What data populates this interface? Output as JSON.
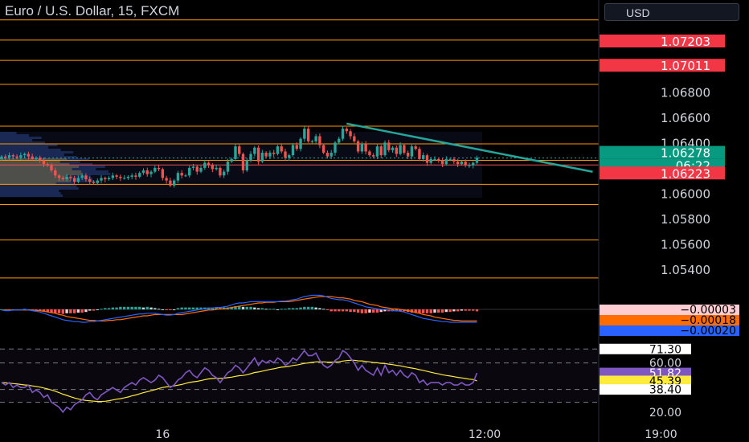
{
  "header": {
    "symbol": "Euro / U.S. Dollar, 15, FXCM",
    "currency": "USD"
  },
  "colors": {
    "bull": "#26a69a",
    "bear": "#ef5350",
    "hline": "#ff9800",
    "trend": "#26a69a",
    "macd": "#2962ff",
    "signal": "#ff6d00",
    "rsi": "#7e57c2",
    "rsi_ma": "#ffeb3b",
    "red_label": "#f23645",
    "green_label": "#089981"
  },
  "chart_data": [
    {
      "type": "candlestick",
      "title": "Euro / U.S. Dollar, 15, FXCM",
      "ylim": [
        1.0524,
        1.074
      ],
      "y_ticks": [
        "1.06800",
        "1.06600",
        "1.06400",
        "1.06000",
        "1.05800",
        "1.05600",
        "1.05400"
      ],
      "horizontal_levels": [
        1.0737,
        1.0721,
        1.0705,
        1.0686,
        1.0653,
        1.0639,
        1.0626,
        1.0607,
        1.0591,
        1.0563,
        1.0533
      ],
      "price_labels": [
        {
          "text": "1.07203",
          "value": 1.07203,
          "kind": "red"
        },
        {
          "text": "1.07011",
          "value": 1.07011,
          "kind": "red"
        },
        {
          "text": "1.06278",
          "value": 1.06278,
          "kind": "green"
        },
        {
          "text": "06:22",
          "value": 1.06278,
          "kind": "green-sub"
        },
        {
          "text": "1.06223",
          "value": 1.06223,
          "kind": "red"
        }
      ],
      "trendline": {
        "from": [
          90,
          1.0655
        ],
        "to": [
          150,
          1.0622
        ]
      },
      "close": [
        1.0629,
        1.0628,
        1.063,
        1.0629,
        1.0628,
        1.063,
        1.0631,
        1.0629,
        1.0627,
        1.0628,
        1.0626,
        1.0623,
        1.0622,
        1.0618,
        1.0614,
        1.0612,
        1.0611,
        1.0613,
        1.0612,
        1.0609,
        1.0612,
        1.0614,
        1.0611,
        1.0609,
        1.0608,
        1.061,
        1.0612,
        1.0611,
        1.0612,
        1.0614,
        1.0613,
        1.0612,
        1.0612,
        1.0613,
        1.0614,
        1.0613,
        1.0616,
        1.0618,
        1.0615,
        1.0617,
        1.062,
        1.0619,
        1.0612,
        1.061,
        1.0606,
        1.061,
        1.0616,
        1.0614,
        1.0614,
        1.062,
        1.0621,
        1.0617,
        1.062,
        1.0624,
        1.0622,
        1.0619,
        1.062,
        1.0614,
        1.0617,
        1.0625,
        1.0627,
        1.0637,
        1.0631,
        1.0618,
        1.0626,
        1.0631,
        1.0636,
        1.0625,
        1.0632,
        1.0629,
        1.0632,
        1.0631,
        1.0637,
        1.0633,
        1.0628,
        1.063,
        1.0638,
        1.0635,
        1.0643,
        1.0651,
        1.0641,
        1.0641,
        1.0645,
        1.0638,
        1.0632,
        1.0629,
        1.0632,
        1.064,
        1.0643,
        1.0651,
        1.0649,
        1.0645,
        1.0641,
        1.0633,
        1.0639,
        1.0633,
        1.063,
        1.0629,
        1.0637,
        1.063,
        1.064,
        1.0634,
        1.0636,
        1.0631,
        1.0638,
        1.0632,
        1.0629,
        1.0637,
        1.0635,
        1.0627,
        1.063,
        1.0624,
        1.0627,
        1.0627,
        1.0626,
        1.0623,
        1.0627,
        1.0627,
        1.0625,
        1.0623,
        1.0625,
        1.0622,
        1.0622,
        1.0624,
        1.0628
      ]
    },
    {
      "type": "macd",
      "ylim": [
        -0.0004,
        0.0003
      ],
      "labels": [
        {
          "text": "−0.00003",
          "value": -3e-05,
          "kind": "pink"
        },
        {
          "text": "−0.00018",
          "value": -0.00018,
          "kind": "orange"
        },
        {
          "text": "−0.00020",
          "value": -0.0002,
          "kind": "blue"
        }
      ],
      "macd": [
        -1e-05,
        -2e-05,
        -2e-05,
        -1e-05,
        -1e-05,
        -1e-05,
        -0.0,
        -1e-05,
        -2e-05,
        -3e-05,
        -4e-05,
        -6e-05,
        -8e-05,
        -0.0001,
        -0.00012,
        -0.00014,
        -0.00016,
        -0.00017,
        -0.00018,
        -0.00019,
        -0.00019,
        -0.0002,
        -0.0002,
        -0.00019,
        -0.00019,
        -0.00018,
        -0.00017,
        -0.00016,
        -0.00015,
        -0.00014,
        -0.00013,
        -0.00012,
        -0.00011,
        -0.0001,
        -9e-05,
        -8e-05,
        -7e-05,
        -7e-05,
        -6e-05,
        -6e-05,
        -6e-05,
        -7e-05,
        -8e-05,
        -9e-05,
        -9e-05,
        -8e-05,
        -6e-05,
        -5e-05,
        -4e-05,
        -3e-05,
        -2e-05,
        -1e-05,
        0.0,
        1e-05,
        2e-05,
        2e-05,
        3e-05,
        3e-05,
        4e-05,
        5e-05,
        7e-05,
        9e-05,
        0.0001,
        0.0001,
        0.00011,
        0.00012,
        0.00012,
        0.00012,
        0.00012,
        0.00012,
        0.00012,
        0.00012,
        0.00012,
        0.00013,
        0.00013,
        0.00014,
        0.00015,
        0.00016,
        0.00018,
        0.0002,
        0.00021,
        0.00022,
        0.00022,
        0.00022,
        0.00021,
        0.00019,
        0.00017,
        0.00016,
        0.00015,
        0.00015,
        0.00014,
        0.00012,
        0.0001,
        8e-05,
        6e-05,
        4e-05,
        3e-05,
        2e-05,
        1e-05,
        0.0,
        -0.0,
        -1e-05,
        -2e-05,
        -2e-05,
        -3e-05,
        -4e-05,
        -6e-05,
        -8e-05,
        -0.0001,
        -0.00012,
        -0.00014,
        -0.00015,
        -0.00016,
        -0.00017,
        -0.00018,
        -0.00019,
        -0.00019,
        -0.0002,
        -0.0002,
        -0.0002,
        -0.0002,
        -0.0002,
        -0.0002,
        -0.0002,
        -0.0002
      ],
      "signal": [
        -1e-05,
        -1e-05,
        -1e-05,
        -1e-05,
        -1e-05,
        -1e-05,
        -1e-05,
        -1e-05,
        -1e-05,
        -2e-05,
        -2e-05,
        -3e-05,
        -4e-05,
        -5e-05,
        -6e-05,
        -8e-05,
        -9e-05,
        -0.00011,
        -0.00012,
        -0.00013,
        -0.00014,
        -0.00015,
        -0.00016,
        -0.00017,
        -0.00017,
        -0.00018,
        -0.00018,
        -0.00018,
        -0.00017,
        -0.00017,
        -0.00016,
        -0.00016,
        -0.00015,
        -0.00014,
        -0.00013,
        -0.00012,
        -0.00011,
        -0.0001,
        -0.0001,
        -9e-05,
        -8e-05,
        -8e-05,
        -8e-05,
        -8e-05,
        -8e-05,
        -8e-05,
        -8e-05,
        -8e-05,
        -7e-05,
        -6e-05,
        -5e-05,
        -4e-05,
        -3e-05,
        -2e-05,
        -1e-05,
        -1e-05,
        0.0,
        1e-05,
        1e-05,
        2e-05,
        3e-05,
        4e-05,
        5e-05,
        6e-05,
        7e-05,
        8e-05,
        9e-05,
        0.0001,
        0.0001,
        0.00011,
        0.00011,
        0.00011,
        0.00012,
        0.00012,
        0.00012,
        0.00012,
        0.00013,
        0.00014,
        0.00015,
        0.00016,
        0.00017,
        0.00018,
        0.00019,
        0.0002,
        0.0002,
        0.0002,
        0.0002,
        0.00019,
        0.00018,
        0.00018,
        0.00017,
        0.00016,
        0.00014,
        0.00013,
        0.00012,
        0.0001,
        8e-05,
        7e-05,
        6e-05,
        4e-05,
        3e-05,
        2e-05,
        1e-05,
        1e-05,
        0.0,
        -1e-05,
        -2e-05,
        -3e-05,
        -5e-05,
        -6e-05,
        -8e-05,
        -9e-05,
        -0.0001,
        -0.00012,
        -0.00013,
        -0.00014,
        -0.00015,
        -0.00016,
        -0.00017,
        -0.00017,
        -0.00018,
        -0.00018,
        -0.00018,
        -0.00018,
        -0.00018
      ],
      "hist": [
        0.0,
        -0.0,
        -1e-05,
        0.0,
        0.0,
        0.0,
        1e-05,
        0.0,
        -1e-05,
        -1e-05,
        -2e-05,
        -3e-05,
        -4e-05,
        -5e-05,
        -6e-05,
        -6e-05,
        -7e-05,
        -6e-05,
        -6e-05,
        -6e-05,
        -5e-05,
        -5e-05,
        -4e-05,
        -2e-05,
        -2e-05,
        0.0,
        1e-05,
        2e-05,
        2e-05,
        3e-05,
        3e-05,
        4e-05,
        4e-05,
        4e-05,
        4e-05,
        4e-05,
        4e-05,
        3e-05,
        4e-05,
        3e-05,
        2e-05,
        1e-05,
        -0.0,
        -1e-05,
        -1e-05,
        0.0,
        2e-05,
        3e-05,
        3e-05,
        3e-05,
        3e-05,
        3e-05,
        3e-05,
        3e-05,
        3e-05,
        3e-05,
        3e-05,
        2e-05,
        3e-05,
        3e-05,
        4e-05,
        5e-05,
        5e-05,
        4e-05,
        4e-05,
        4e-05,
        3e-05,
        2e-05,
        2e-05,
        1e-05,
        1e-05,
        1e-05,
        0.0,
        1e-05,
        1e-05,
        2e-05,
        2e-05,
        2e-05,
        3e-05,
        4e-05,
        4e-05,
        4e-05,
        3e-05,
        2e-05,
        1e-05,
        -1e-05,
        -3e-05,
        -3e-05,
        -3e-05,
        -3e-05,
        -3e-05,
        -4e-05,
        -4e-05,
        -5e-05,
        -6e-05,
        -6e-05,
        -5e-05,
        -5e-05,
        -5e-05,
        -4e-05,
        -3e-05,
        -3e-05,
        -3e-05,
        -3e-05,
        -3e-05,
        -3e-05,
        -4e-05,
        -5e-05,
        -5e-05,
        -6e-05,
        -6e-05,
        -6e-05,
        -6e-05,
        -5e-05,
        -5e-05,
        -5e-05,
        -4e-05,
        -4e-05,
        -3e-05,
        -3e-05,
        -2e-05,
        -2e-05,
        -2e-05,
        -2e-05,
        -3e-05
      ]
    },
    {
      "type": "rsi",
      "ylim": [
        14,
        78
      ],
      "y_ticks": [
        "71.30",
        "60.00",
        "51.82",
        "45.39",
        "38.40",
        "20.00"
      ],
      "labels": [
        {
          "text": "71.30",
          "value": 71.3,
          "kind": "white"
        },
        {
          "text": "51.82",
          "value": 51.82,
          "kind": "purple"
        },
        {
          "text": "45.39",
          "value": 45.39,
          "kind": "yellow"
        },
        {
          "text": "38.40",
          "value": 38.4,
          "kind": "white"
        }
      ],
      "levels": [
        71.3,
        60,
        38.4,
        28
      ],
      "x_ticks": [
        {
          "index": 42,
          "text": "16"
        },
        {
          "index": 126,
          "text": "12:00"
        },
        {
          "index": 172,
          "text": "19:00"
        }
      ],
      "rsi": [
        44.0,
        42.0,
        44.0,
        40.0,
        42.0,
        40.0,
        40.0,
        42.0,
        36.0,
        38.0,
        36.0,
        32.0,
        34.0,
        28.0,
        26.0,
        24.0,
        20.0,
        24.0,
        22.0,
        26.0,
        28.0,
        30.0,
        34.0,
        36.0,
        32.0,
        30.0,
        34.0,
        36.0,
        38.0,
        40.0,
        38.0,
        36.0,
        40.0,
        42.0,
        44.0,
        42.0,
        46.0,
        48.0,
        46.0,
        44.0,
        46.0,
        50.0,
        48.0,
        44.0,
        40.0,
        42.0,
        46.0,
        48.0,
        52.0,
        54.0,
        50.0,
        48.0,
        52.0,
        56.0,
        54.0,
        50.0,
        48.0,
        44.0,
        48.0,
        52.0,
        54.0,
        58.0,
        56.0,
        52.0,
        56.0,
        60.0,
        64.0,
        58.0,
        62.0,
        60.0,
        62.0,
        60.0,
        64.0,
        62.0,
        58.0,
        60.0,
        64.0,
        62.0,
        66.0,
        70.0,
        66.0,
        66.0,
        68.0,
        62.0,
        58.0,
        56.0,
        58.0,
        62.0,
        64.0,
        70.0,
        68.0,
        64.0,
        60.0,
        54.0,
        58.0,
        54.0,
        52.0,
        50.0,
        56.0,
        50.0,
        58.0,
        52.0,
        54.0,
        50.0,
        54.0,
        50.0,
        48.0,
        52.0,
        50.0,
        44.0,
        46.0,
        42.0,
        44.0,
        44.0,
        44.0,
        42.0,
        44.0,
        44.0,
        42.0,
        42.0,
        44.0,
        42.0,
        42.0,
        44.0,
        51.82
      ],
      "rsi_ma": [
        44.0,
        43.8,
        43.6,
        43.2,
        42.9,
        42.5,
        42.1,
        41.8,
        41.3,
        40.9,
        40.3,
        39.6,
        38.9,
        38.0,
        37.0,
        35.9,
        34.6,
        33.6,
        32.5,
        31.5,
        30.7,
        30.0,
        29.5,
        29.2,
        28.9,
        28.6,
        28.6,
        28.8,
        29.3,
        29.9,
        30.5,
        30.9,
        31.6,
        32.3,
        33.2,
        33.9,
        34.8,
        35.8,
        36.6,
        37.4,
        38.2,
        39.2,
        40.0,
        40.5,
        40.8,
        41.3,
        41.9,
        42.5,
        43.3,
        44.1,
        44.6,
        45.0,
        45.6,
        46.4,
        47.0,
        47.3,
        47.5,
        47.4,
        47.6,
        48.0,
        48.4,
        49.1,
        49.6,
        49.8,
        50.4,
        51.2,
        52.2,
        52.6,
        53.3,
        54.0,
        54.7,
        55.2,
        55.9,
        56.5,
        56.8,
        57.2,
        57.9,
        58.3,
        58.9,
        59.6,
        60.0,
        60.4,
        60.8,
        60.9,
        60.8,
        60.6,
        60.6,
        60.7,
        60.9,
        61.5,
        61.9,
        62.1,
        62.1,
        61.7,
        61.6,
        61.2,
        60.8,
        60.3,
        60.1,
        59.6,
        59.5,
        59.0,
        58.6,
        58.0,
        57.6,
        57.0,
        56.3,
        55.8,
        55.3,
        54.5,
        53.9,
        53.1,
        52.4,
        51.7,
        51.1,
        50.4,
        49.8,
        49.3,
        48.8,
        48.2,
        47.8,
        47.3,
        46.8,
        46.5,
        45.39
      ]
    }
  ]
}
